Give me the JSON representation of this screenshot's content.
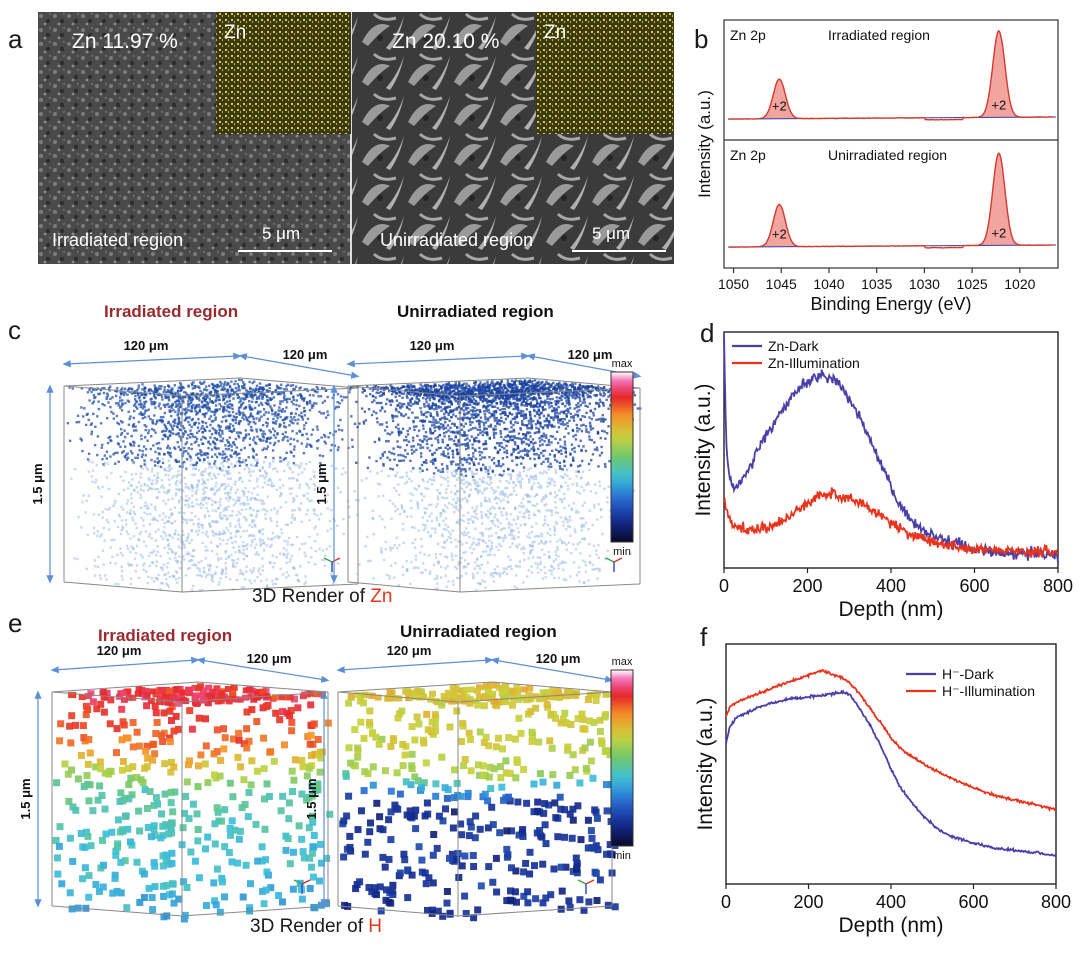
{
  "panel_labels": {
    "a": "a",
    "b": "b",
    "c": "c",
    "d": "d",
    "e": "e",
    "f": "f"
  },
  "panel_a": {
    "left": {
      "pct": "Zn  11.97 %",
      "inset": "Zn",
      "region": "Irradiated region",
      "scale": "5 μm"
    },
    "right": {
      "pct": "Zn  20.10 %",
      "inset": "Zn",
      "region": "Unirradiated region",
      "scale": "5 μm"
    }
  },
  "panel_b": {
    "ylabel": "Intensity (a.u.)",
    "xlabel": "Binding Energy (eV)",
    "top": {
      "element": "Zn 2p",
      "region": "Irradiated region"
    },
    "bottom": {
      "element": "Zn 2p",
      "region": "Unirradiated region"
    },
    "peak_label": "+2"
  },
  "panel_c": {
    "left_title": "Irradiated region",
    "right_title": "Unirradiated region",
    "dim_w": "120 μm",
    "dim_d": "120 μm",
    "dim_h": "1.5 μm",
    "cb_max": "max",
    "cb_min": "min",
    "caption_pre": "3D Render of ",
    "caption_el": "Zn"
  },
  "panel_e": {
    "left_title": "Irradiated region",
    "right_title": "Unirradiated region",
    "dim_w": "120 μm",
    "dim_d": "120 μm",
    "dim_h": "1.5 μm",
    "cb_max": "max",
    "cb_min": "min",
    "caption_pre": "3D Render of ",
    "caption_el": "H"
  },
  "colors": {
    "dark": "#4b3fa8",
    "illum": "#e8341c",
    "xps_fill": "#e85a50",
    "irradiated_title": "#9b2a2f"
  },
  "chart_data": [
    {
      "id": "b",
      "type": "line",
      "xlabel": "Binding Energy (eV)",
      "ylabel": "Intensity (a.u.)",
      "xlim": [
        1051,
        1016
      ],
      "xticks": [
        1050,
        1045,
        1040,
        1035,
        1030,
        1025,
        1020
      ],
      "series": [
        {
          "name": "Irradiated region",
          "peaks": [
            {
              "x": 1045.2,
              "label": "+2"
            },
            {
              "x": 1022.2,
              "label": "+2"
            }
          ]
        },
        {
          "name": "Unirradiated region",
          "peaks": [
            {
              "x": 1045.2,
              "label": "+2"
            },
            {
              "x": 1022.2,
              "label": "+2"
            }
          ]
        }
      ]
    },
    {
      "id": "d",
      "type": "line",
      "xlabel": "Depth (nm)",
      "ylabel": "Intensity (a.u.)",
      "xlim": [
        0,
        800
      ],
      "ylim": [
        0,
        1
      ],
      "xticks": [
        0,
        200,
        400,
        600,
        800
      ],
      "legend": "top-left",
      "series": [
        {
          "name": "Zn-Dark",
          "x": [
            0,
            5,
            10,
            20,
            40,
            60,
            80,
            100,
            130,
            160,
            190,
            220,
            240,
            260,
            280,
            300,
            320,
            340,
            360,
            380,
            400,
            420,
            440,
            470,
            500,
            530,
            560,
            600,
            650,
            700,
            750,
            800
          ],
          "y": [
            0.98,
            0.55,
            0.42,
            0.34,
            0.36,
            0.42,
            0.5,
            0.56,
            0.64,
            0.72,
            0.78,
            0.81,
            0.82,
            0.8,
            0.77,
            0.72,
            0.66,
            0.58,
            0.5,
            0.42,
            0.34,
            0.27,
            0.22,
            0.17,
            0.14,
            0.12,
            0.1,
            0.08,
            0.07,
            0.06,
            0.06,
            0.05
          ]
        },
        {
          "name": "Zn-Illumination",
          "x": [
            0,
            5,
            10,
            20,
            40,
            60,
            80,
            100,
            130,
            160,
            190,
            220,
            240,
            260,
            280,
            300,
            320,
            340,
            360,
            380,
            400,
            420,
            440,
            470,
            500,
            530,
            560,
            600,
            650,
            700,
            750,
            800
          ],
          "y": [
            0.3,
            0.24,
            0.22,
            0.19,
            0.17,
            0.16,
            0.16,
            0.17,
            0.19,
            0.22,
            0.26,
            0.3,
            0.31,
            0.32,
            0.31,
            0.3,
            0.28,
            0.26,
            0.24,
            0.22,
            0.19,
            0.17,
            0.15,
            0.13,
            0.11,
            0.1,
            0.09,
            0.08,
            0.08,
            0.07,
            0.07,
            0.07
          ]
        }
      ]
    },
    {
      "id": "f",
      "type": "line",
      "xlabel": "Depth (nm)",
      "ylabel": "Intensity (a.u.)",
      "xlim": [
        0,
        800
      ],
      "ylim": [
        0,
        1
      ],
      "xticks": [
        0,
        200,
        400,
        600,
        800
      ],
      "legend": "top-right",
      "series": [
        {
          "name": "H⁻-Dark",
          "x": [
            0,
            10,
            30,
            60,
            100,
            150,
            200,
            250,
            280,
            300,
            320,
            350,
            380,
            400,
            420,
            450,
            480,
            520,
            560,
            600,
            650,
            700,
            750,
            800
          ],
          "y": [
            0.58,
            0.66,
            0.7,
            0.72,
            0.75,
            0.77,
            0.78,
            0.79,
            0.8,
            0.79,
            0.74,
            0.66,
            0.56,
            0.48,
            0.41,
            0.34,
            0.28,
            0.22,
            0.19,
            0.17,
            0.15,
            0.14,
            0.13,
            0.12
          ]
        },
        {
          "name": "H⁻-Illumination",
          "x": [
            0,
            10,
            30,
            60,
            100,
            150,
            200,
            230,
            250,
            280,
            300,
            320,
            350,
            380,
            400,
            420,
            450,
            480,
            520,
            560,
            600,
            650,
            700,
            750,
            800
          ],
          "y": [
            0.7,
            0.74,
            0.76,
            0.78,
            0.81,
            0.84,
            0.87,
            0.89,
            0.88,
            0.86,
            0.84,
            0.8,
            0.73,
            0.66,
            0.61,
            0.57,
            0.53,
            0.5,
            0.46,
            0.43,
            0.4,
            0.37,
            0.35,
            0.33,
            0.31
          ]
        }
      ]
    }
  ]
}
